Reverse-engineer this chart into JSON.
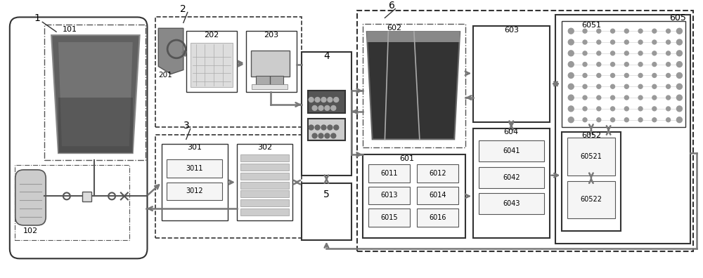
{
  "bg_color": "#ffffff",
  "line_color": "#808080",
  "dark_line": "#555555",
  "box_color": "#ffffff",
  "dashed_color": "#333333",
  "arrow_color": "#808080"
}
